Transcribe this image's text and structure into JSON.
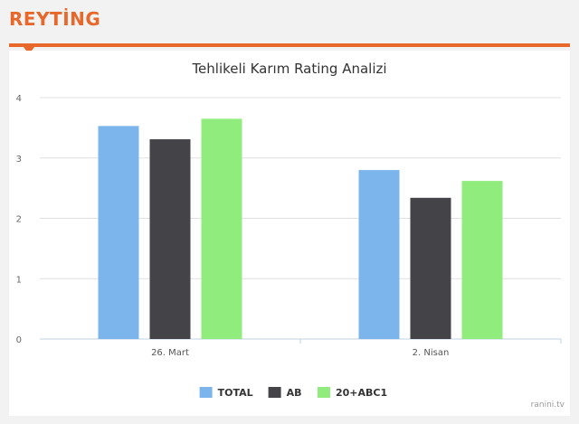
{
  "header": {
    "section_title": "REYTİNG"
  },
  "colors": {
    "accent": "#e8672a"
  },
  "watermark": "ranini.tv",
  "chart_data": {
    "type": "bar",
    "title": "Tehlikeli Karım Rating Analizi",
    "categories": [
      "26. Mart",
      "2. Nisan"
    ],
    "series": [
      {
        "name": "TOTAL",
        "color": "#7cb5ec",
        "values": [
          3.53,
          2.8
        ]
      },
      {
        "name": "AB",
        "color": "#434348",
        "values": [
          3.31,
          2.34
        ]
      },
      {
        "name": "20+ABC1",
        "color": "#90ed7d",
        "values": [
          3.65,
          2.62
        ]
      }
    ],
    "ylim": [
      0,
      4
    ],
    "yticks": [
      0,
      1,
      2,
      3,
      4
    ],
    "grid": true,
    "legend": "bottom-center"
  }
}
